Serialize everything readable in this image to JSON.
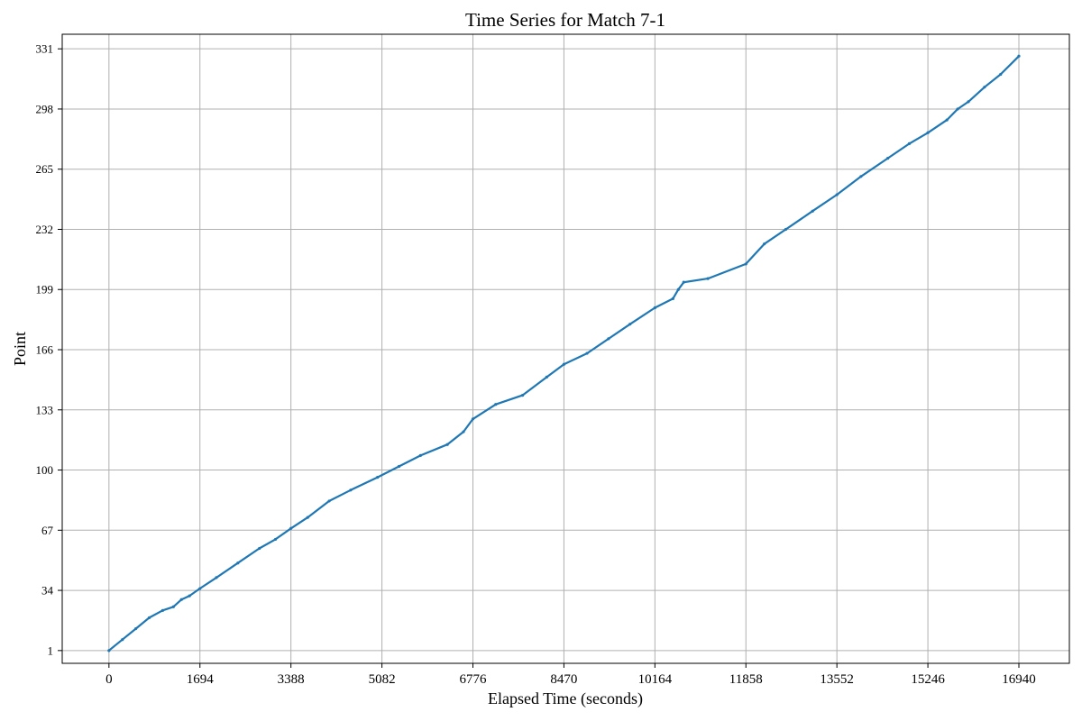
{
  "chart_data": {
    "type": "line",
    "title": "Time Series for Match 7-1",
    "xlabel": "Elapsed Time (seconds)",
    "ylabel": "Point",
    "xlim": [
      -870,
      17880
    ],
    "ylim": [
      -6,
      339
    ],
    "x_ticks": [
      0,
      1694,
      3388,
      5082,
      6776,
      8470,
      10164,
      11858,
      13552,
      15246,
      16940
    ],
    "y_ticks": [
      1,
      34,
      67,
      100,
      133,
      166,
      199,
      232,
      265,
      298,
      331
    ],
    "grid": true,
    "legend": "none",
    "colors": {
      "series": "#1f77b4",
      "grid": "#b0b0b0"
    },
    "series": [
      {
        "x": [
          0,
          250,
          500,
          750,
          1000,
          1200,
          1350,
          1500,
          1694,
          2000,
          2400,
          2800,
          3100,
          3388,
          3700,
          4100,
          4500,
          5000,
          5400,
          5800,
          6300,
          6600,
          6776,
          7200,
          7700,
          8150,
          8470,
          8900,
          9300,
          9700,
          10164,
          10500,
          10600,
          10700,
          11150,
          11858,
          12200,
          12600,
          13100,
          13552,
          14000,
          14500,
          14900,
          15246,
          15600,
          15800,
          16000,
          16300,
          16600,
          16940
        ],
        "y": [
          1,
          7,
          13,
          19,
          23,
          25,
          29,
          31,
          35,
          41,
          49,
          57,
          62,
          68,
          74,
          83,
          89,
          96,
          102,
          108,
          114,
          121,
          128,
          136,
          141,
          151,
          158,
          164,
          172,
          180,
          189,
          194,
          199,
          203,
          205,
          213,
          224,
          232,
          242,
          251,
          261,
          271,
          279,
          285,
          292,
          298,
          302,
          310,
          317,
          327
        ]
      }
    ]
  }
}
